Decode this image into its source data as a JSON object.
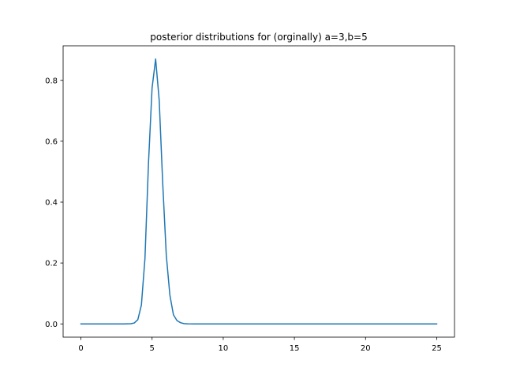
{
  "chart_data": {
    "type": "line",
    "title": "posterior distributions for (orginally) a=3,b=5",
    "xlabel": "",
    "ylabel": "",
    "xlim": [
      -1.25,
      26.25
    ],
    "ylim": [
      -0.0435,
      0.9135
    ],
    "x_ticks": [
      0,
      5,
      10,
      15,
      20,
      25
    ],
    "x_tick_labels": [
      "0",
      "5",
      "10",
      "15",
      "20",
      "25"
    ],
    "y_ticks": [
      0.0,
      0.2,
      0.4,
      0.6,
      0.8
    ],
    "y_tick_labels": [
      "0.0",
      "0.2",
      "0.4",
      "0.6",
      "0.8"
    ],
    "grid": false,
    "series": [
      {
        "color": "#1f77b4",
        "x": [
          0,
          0.5,
          1,
          1.5,
          2,
          2.5,
          3,
          3.5,
          3.75,
          4.0,
          4.25,
          4.5,
          4.75,
          5.0,
          5.25,
          5.5,
          5.75,
          6.0,
          6.25,
          6.5,
          6.75,
          7.0,
          7.25,
          7.5,
          8,
          9,
          10,
          12,
          15,
          20,
          25
        ],
        "y": [
          0,
          0,
          0,
          0,
          0,
          0,
          0,
          0.0005,
          0.003,
          0.014,
          0.062,
          0.215,
          0.53,
          0.775,
          0.87,
          0.735,
          0.46,
          0.225,
          0.095,
          0.03,
          0.011,
          0.004,
          0.001,
          0.0003,
          0,
          0,
          0,
          0,
          0,
          0,
          0
        ]
      }
    ]
  }
}
